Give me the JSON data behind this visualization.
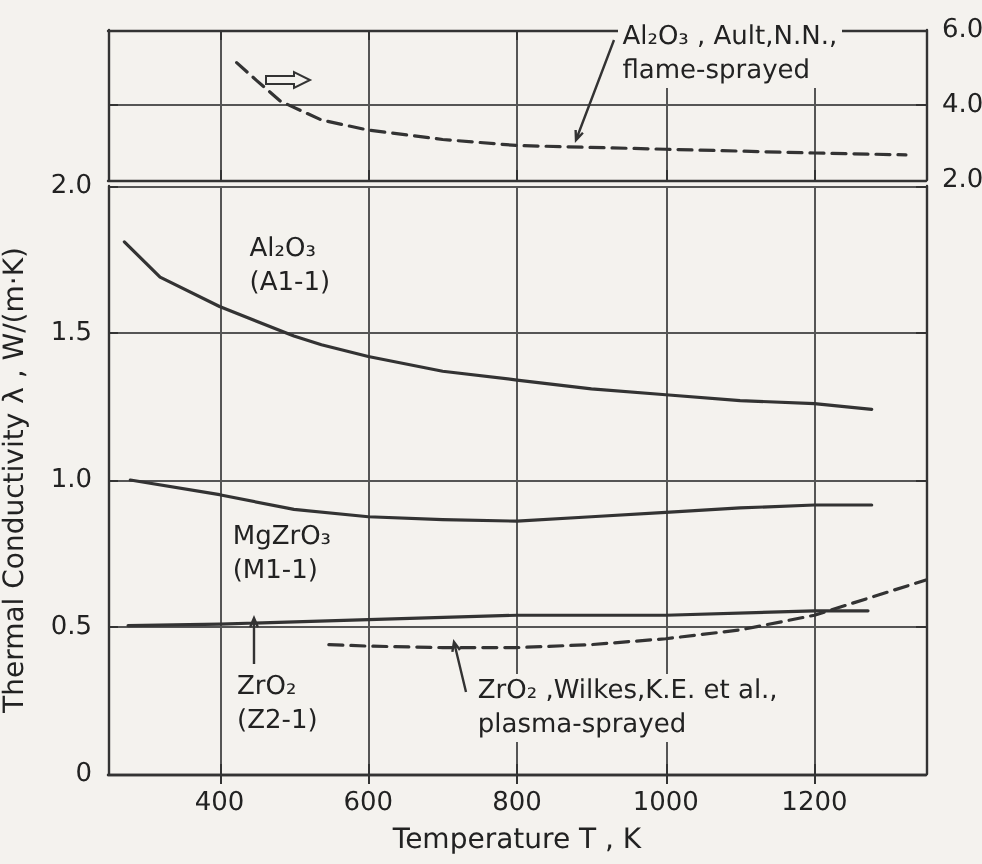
{
  "chart_data": [
    {
      "type": "line",
      "xlim": [
        250,
        1350
      ],
      "xticks": [
        400,
        600,
        800,
        1000,
        1200
      ],
      "ylim": [
        2,
        6
      ],
      "yticks": [
        {
          "value": 2,
          "label": "2.0"
        },
        {
          "value": 4,
          "label": "4.0"
        },
        {
          "value": 6,
          "label": "6.0"
        }
      ],
      "tick_labels": "y",
      "grid": true,
      "marker": "none",
      "series": [
        {
          "color": "#333333",
          "line_style": "dashed",
          "x": [
            423,
            450,
            482,
            537,
            600,
            700,
            800,
            1000,
            1200,
            1323
          ],
          "values": [
            5.13,
            4.65,
            4.1,
            3.6,
            3.33,
            3.08,
            2.92,
            2.82,
            2.72,
            2.67
          ]
        }
      ],
      "annotations": [
        {
          "text": "Al₂O₃ , Ault,N.N.,\nflame-sprayed",
          "x": 880,
          "y": 2.9
        }
      ]
    },
    {
      "type": "line",
      "xlabel": "Temperature T , K",
      "ylabel": "Thermal Conductivity λ , W/(m·K)",
      "xlim": [
        250,
        1350
      ],
      "xticks": [
        400,
        600,
        800,
        1000,
        1200
      ],
      "ylim": [
        0,
        2
      ],
      "yticks": [
        0,
        {
          "value": 0.5,
          "label": "0.5"
        },
        {
          "value": 1,
          "label": "1.0"
        },
        {
          "value": 1.5,
          "label": "1.5"
        },
        {
          "value": 2,
          "label": "2.0"
        }
      ],
      "grid": true,
      "marker": "none",
      "series": [
        {
          "color": "#333333",
          "line_style": "solid",
          "x": [
            272,
            320,
            400,
            500,
            537,
            600,
            700,
            800,
            900,
            1000,
            1100,
            1200,
            1277
          ],
          "values": [
            1.81,
            1.69,
            1.59,
            1.49,
            1.46,
            1.42,
            1.37,
            1.34,
            1.31,
            1.29,
            1.27,
            1.26,
            1.24
          ]
        },
        {
          "color": "#333333",
          "line_style": "solid",
          "x": [
            280,
            400,
            500,
            600,
            700,
            800,
            900,
            1000,
            1100,
            1200,
            1277
          ],
          "values": [
            1.0,
            0.95,
            0.9,
            0.875,
            0.865,
            0.86,
            0.875,
            0.89,
            0.905,
            0.915,
            0.915
          ]
        },
        {
          "color": "#333333",
          "line_style": "solid",
          "x": [
            277,
            400,
            600,
            800,
            1000,
            1200,
            1272
          ],
          "values": [
            0.505,
            0.51,
            0.525,
            0.54,
            0.54,
            0.555,
            0.555
          ]
        },
        {
          "color": "#333333",
          "line_style": "dashed",
          "x": [
            547,
            600,
            700,
            800,
            900,
            1000,
            1100,
            1200,
            1300,
            1350
          ],
          "values": [
            0.44,
            0.435,
            0.43,
            0.43,
            0.44,
            0.46,
            0.49,
            0.54,
            0.62,
            0.66
          ]
        }
      ],
      "annotations": [
        {
          "text": "Al₂O₃\n(A1-1)",
          "x": 400,
          "y": 1.59
        },
        {
          "text": "MgZrO₃\n(M1-1)",
          "x": 450,
          "y": 0.93
        },
        {
          "text": "ZrO₂\n(Z2-1)",
          "x": 445,
          "y": 0.51
        },
        {
          "text": "ZrO₂ ,Wilkes,K.E. et al.,\nplasma-sprayed",
          "x": 715,
          "y": 0.43
        }
      ]
    }
  ]
}
